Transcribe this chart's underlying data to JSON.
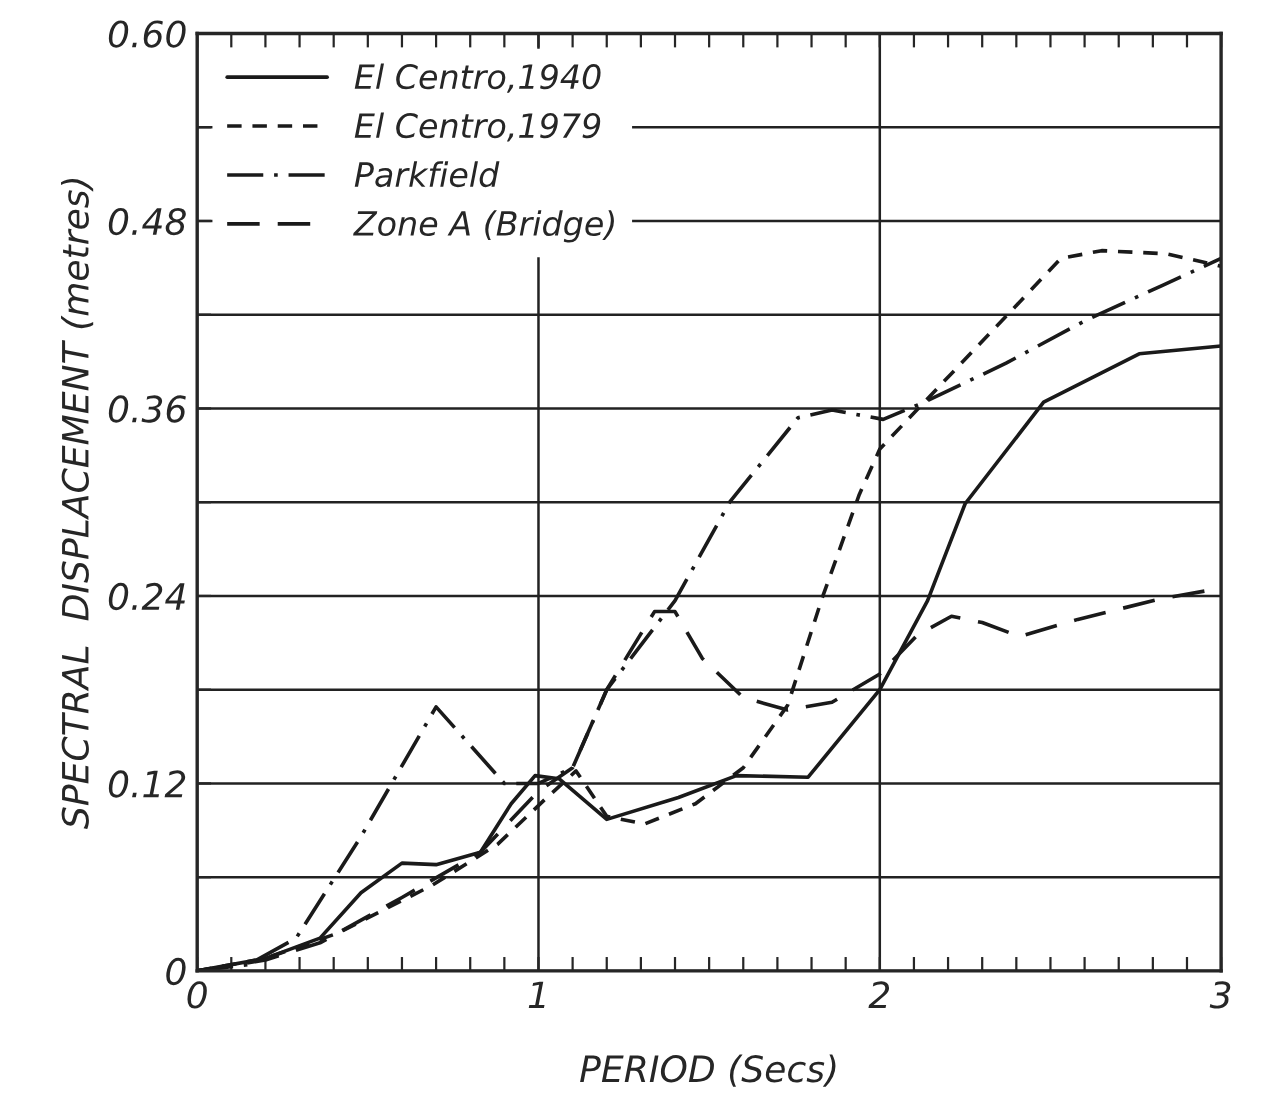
{
  "chart_data": {
    "type": "line",
    "xlabel": "PERIOD (Secs)",
    "ylabel": "SPECTRAL  DISPLACEMENT (metres)",
    "xlim": [
      0,
      3
    ],
    "ylim": [
      0,
      0.6
    ],
    "xticks": [
      0,
      {
        "value": 0.1,
        "label": null
      },
      {
        "value": 0.2,
        "label": null
      },
      {
        "value": 0.3,
        "label": null
      },
      {
        "value": 0.4,
        "label": null
      },
      {
        "value": 0.5,
        "label": null
      },
      {
        "value": 0.6,
        "label": null
      },
      {
        "value": 0.7,
        "label": null
      },
      {
        "value": 0.8,
        "label": null
      },
      {
        "value": 0.9,
        "label": null
      },
      1,
      {
        "value": 1.1,
        "label": null
      },
      {
        "value": 1.2,
        "label": null
      },
      {
        "value": 1.3,
        "label": null
      },
      {
        "value": 1.4,
        "label": null
      },
      {
        "value": 1.5,
        "label": null
      },
      {
        "value": 1.6,
        "label": null
      },
      {
        "value": 1.7,
        "label": null
      },
      {
        "value": 1.8,
        "label": null
      },
      {
        "value": 1.9,
        "label": null
      },
      2,
      {
        "value": 2.1,
        "label": null
      },
      {
        "value": 2.2,
        "label": null
      },
      {
        "value": 2.3,
        "label": null
      },
      {
        "value": 2.4,
        "label": null
      },
      {
        "value": 2.5,
        "label": null
      },
      {
        "value": 2.6,
        "label": null
      },
      {
        "value": 2.7,
        "label": null
      },
      {
        "value": 2.8,
        "label": null
      },
      {
        "value": 2.9,
        "label": null
      },
      3
    ],
    "yticks": [
      0,
      {
        "value": 0.06,
        "label": null
      },
      {
        "value": 0.12,
        "label": "0.12"
      },
      {
        "value": 0.18,
        "label": null
      },
      {
        "value": 0.24,
        "label": "0.24"
      },
      {
        "value": 0.3,
        "label": null
      },
      {
        "value": 0.36,
        "label": "0.36"
      },
      {
        "value": 0.42,
        "label": null
      },
      {
        "value": 0.48,
        "label": "0.48"
      },
      {
        "value": 0.54,
        "label": null
      },
      {
        "value": 0.6,
        "label": "0.60"
      }
    ],
    "grid": true,
    "legend": "top left",
    "marker": "none",
    "series": [
      {
        "name": "El Centro,1940",
        "color": "#1a1a1a",
        "line_style": "solid",
        "x": [
          0,
          0.2,
          0.36,
          0.48,
          0.6,
          0.7,
          0.83,
          0.92,
          0.99,
          1.06,
          1.2,
          1.41,
          1.58,
          1.79,
          2.0,
          2.14,
          2.25,
          2.48,
          2.76,
          3.0
        ],
        "values": [
          0,
          0.008,
          0.021,
          0.05,
          0.069,
          0.068,
          0.076,
          0.107,
          0.125,
          0.123,
          0.097,
          0.111,
          0.125,
          0.124,
          0.18,
          0.237,
          0.299,
          0.364,
          0.395,
          0.4
        ]
      },
      {
        "name": "El Centro,1979",
        "color": "#1a1a1a",
        "line_style": "dashed",
        "x": [
          0,
          0.2,
          0.41,
          0.69,
          0.88,
          1.02,
          1.11,
          1.2,
          1.31,
          1.46,
          1.6,
          1.73,
          1.83,
          1.94,
          2.0,
          2.13,
          2.37,
          2.53,
          2.65,
          2.84,
          3.0
        ],
        "values": [
          0,
          0.008,
          0.024,
          0.055,
          0.081,
          0.11,
          0.128,
          0.099,
          0.094,
          0.107,
          0.13,
          0.17,
          0.238,
          0.305,
          0.334,
          0.364,
          0.419,
          0.456,
          0.461,
          0.459,
          0.451
        ]
      },
      {
        "name": "Parkfield",
        "color": "#1a1a1a",
        "line_style": "dashdot",
        "x": [
          0,
          0.15,
          0.29,
          0.48,
          0.7,
          0.9,
          1.0,
          1.1,
          1.2,
          1.4,
          1.56,
          1.76,
          1.86,
          2.01,
          2.13,
          2.37,
          2.6,
          2.83,
          3.0
        ],
        "values": [
          0,
          0.004,
          0.021,
          0.086,
          0.169,
          0.12,
          0.12,
          0.13,
          0.18,
          0.237,
          0.3,
          0.354,
          0.359,
          0.353,
          0.364,
          0.389,
          0.416,
          0.439,
          0.456
        ]
      },
      {
        "name": "Zone A (Bridge)",
        "color": "#1a1a1a",
        "line_style": "longdash",
        "x": [
          0,
          0.2,
          0.36,
          0.6,
          0.83,
          1.0,
          1.1,
          1.2,
          1.34,
          1.4,
          1.48,
          1.6,
          1.73,
          1.86,
          2.0,
          2.11,
          2.21,
          2.3,
          2.41,
          2.58,
          2.82,
          3.0
        ],
        "values": [
          0,
          0.007,
          0.018,
          0.047,
          0.076,
          0.115,
          0.13,
          0.18,
          0.23,
          0.23,
          0.2,
          0.175,
          0.167,
          0.172,
          0.19,
          0.215,
          0.227,
          0.223,
          0.214,
          0.225,
          0.238,
          0.245
        ]
      }
    ]
  }
}
